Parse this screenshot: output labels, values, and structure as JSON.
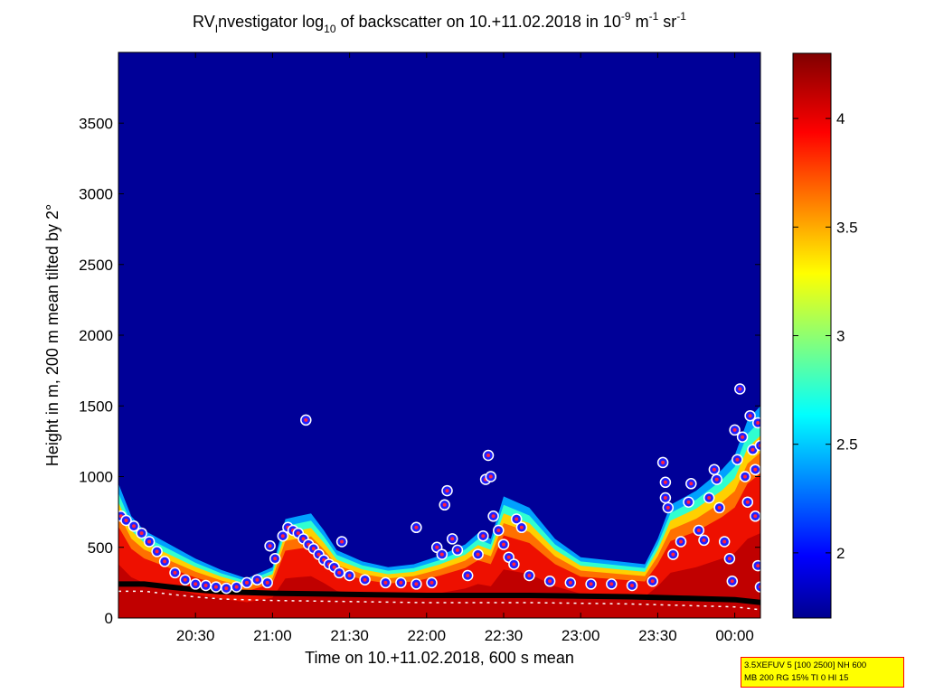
{
  "chart_data": {
    "type": "heatmap",
    "title": {
      "prefix": "RV",
      "prefix_sub": "I",
      "text1": "nvestigator log",
      "sub": "10",
      "text2": " of backscatter on 10.+11.02.2018 in 10",
      "sup1": "-9",
      "text3": " m",
      "sup2": "-1",
      "text4": " sr",
      "sup3": "-1"
    },
    "xlabel": "Time on 10.+11.02.2018, 600 s mean",
    "ylabel": "Height in m, 200 m mean tilted by 2°",
    "x_ticks": [
      {
        "minutes": 30,
        "label": "20:30"
      },
      {
        "minutes": 60,
        "label": "21:00"
      },
      {
        "minutes": 90,
        "label": "21:30"
      },
      {
        "minutes": 120,
        "label": "22:00"
      },
      {
        "minutes": 150,
        "label": "22:30"
      },
      {
        "minutes": 180,
        "label": "23:00"
      },
      {
        "minutes": 210,
        "label": "23:30"
      },
      {
        "minutes": 240,
        "label": "00:00"
      }
    ],
    "xlim_minutes_after_20_00": [
      0,
      250
    ],
    "y_ticks": [
      0,
      500,
      1000,
      1500,
      2000,
      2500,
      3000,
      3500
    ],
    "ylim": [
      0,
      4000
    ],
    "colorbar": {
      "ticks": [
        {
          "value": 2,
          "label": "2"
        },
        {
          "value": 2.5,
          "label": "2.5"
        },
        {
          "value": 3,
          "label": "3"
        },
        {
          "value": 3.5,
          "label": "3.5"
        },
        {
          "value": 4,
          "label": "4"
        }
      ],
      "range": [
        1.7,
        4.3
      ],
      "colormap": "jet"
    },
    "aerosol_top_height_m": [
      [
        0,
        950
      ],
      [
        5,
        720
      ],
      [
        10,
        620
      ],
      [
        20,
        520
      ],
      [
        30,
        420
      ],
      [
        40,
        340
      ],
      [
        50,
        280
      ],
      [
        60,
        360
      ],
      [
        65,
        700
      ],
      [
        70,
        720
      ],
      [
        75,
        740
      ],
      [
        80,
        620
      ],
      [
        85,
        480
      ],
      [
        95,
        400
      ],
      [
        105,
        360
      ],
      [
        115,
        380
      ],
      [
        125,
        440
      ],
      [
        135,
        520
      ],
      [
        140,
        600
      ],
      [
        145,
        560
      ],
      [
        150,
        860
      ],
      [
        160,
        780
      ],
      [
        170,
        560
      ],
      [
        180,
        430
      ],
      [
        195,
        400
      ],
      [
        205,
        380
      ],
      [
        210,
        560
      ],
      [
        215,
        800
      ],
      [
        225,
        900
      ],
      [
        235,
        1050
      ],
      [
        240,
        1150
      ],
      [
        245,
        1400
      ],
      [
        250,
        1500
      ]
    ],
    "boundary_layer_height_m": [
      [
        0,
        240
      ],
      [
        10,
        240
      ],
      [
        15,
        230
      ],
      [
        20,
        220
      ],
      [
        30,
        200
      ],
      [
        40,
        185
      ],
      [
        50,
        180
      ],
      [
        60,
        175
      ],
      [
        80,
        170
      ],
      [
        100,
        165
      ],
      [
        120,
        160
      ],
      [
        140,
        160
      ],
      [
        160,
        160
      ],
      [
        180,
        155
      ],
      [
        200,
        150
      ],
      [
        220,
        140
      ],
      [
        240,
        130
      ],
      [
        250,
        110
      ]
    ],
    "cloud_layer_heights_m": [
      [
        1,
        720
      ],
      [
        3,
        690
      ],
      [
        6,
        650
      ],
      [
        9,
        600
      ],
      [
        12,
        540
      ],
      [
        15,
        470
      ],
      [
        18,
        400
      ],
      [
        22,
        320
      ],
      [
        26,
        270
      ],
      [
        30,
        240
      ],
      [
        34,
        230
      ],
      [
        38,
        220
      ],
      [
        42,
        210
      ],
      [
        46,
        220
      ],
      [
        50,
        250
      ],
      [
        54,
        270
      ],
      [
        58,
        250
      ],
      [
        59,
        510
      ],
      [
        61,
        420
      ],
      [
        64,
        580
      ],
      [
        66,
        640
      ],
      [
        68,
        620
      ],
      [
        70,
        600
      ],
      [
        72,
        560
      ],
      [
        73,
        1400
      ],
      [
        74,
        520
      ],
      [
        76,
        490
      ],
      [
        78,
        450
      ],
      [
        80,
        410
      ],
      [
        82,
        380
      ],
      [
        84,
        360
      ],
      [
        86,
        320
      ],
      [
        87,
        540
      ],
      [
        90,
        300
      ],
      [
        96,
        270
      ],
      [
        104,
        250
      ],
      [
        110,
        250
      ],
      [
        116,
        240
      ],
      [
        122,
        250
      ],
      [
        116,
        640
      ],
      [
        124,
        500
      ],
      [
        126,
        450
      ],
      [
        127,
        800
      ],
      [
        128,
        900
      ],
      [
        130,
        560
      ],
      [
        132,
        480
      ],
      [
        136,
        300
      ],
      [
        140,
        450
      ],
      [
        142,
        580
      ],
      [
        143,
        980
      ],
      [
        144,
        1150
      ],
      [
        145,
        1000
      ],
      [
        146,
        720
      ],
      [
        148,
        620
      ],
      [
        150,
        520
      ],
      [
        152,
        430
      ],
      [
        154,
        380
      ],
      [
        155,
        700
      ],
      [
        157,
        640
      ],
      [
        160,
        300
      ],
      [
        168,
        260
      ],
      [
        176,
        250
      ],
      [
        184,
        240
      ],
      [
        192,
        240
      ],
      [
        200,
        230
      ],
      [
        208,
        260
      ],
      [
        212,
        1100
      ],
      [
        213,
        960
      ],
      [
        213,
        850
      ],
      [
        214,
        780
      ],
      [
        216,
        450
      ],
      [
        219,
        540
      ],
      [
        222,
        820
      ],
      [
        223,
        950
      ],
      [
        226,
        620
      ],
      [
        228,
        550
      ],
      [
        230,
        850
      ],
      [
        232,
        1050
      ],
      [
        233,
        980
      ],
      [
        234,
        780
      ],
      [
        236,
        540
      ],
      [
        238,
        420
      ],
      [
        239,
        260
      ],
      [
        240,
        1330
      ],
      [
        241,
        1120
      ],
      [
        242,
        1620
      ],
      [
        243,
        1280
      ],
      [
        244,
        1000
      ],
      [
        245,
        820
      ],
      [
        246,
        1430
      ],
      [
        247,
        1190
      ],
      [
        248,
        1050
      ],
      [
        248,
        720
      ],
      [
        249,
        1380
      ],
      [
        250,
        1220
      ],
      [
        249,
        370
      ],
      [
        250,
        220
      ]
    ]
  },
  "annotation": {
    "line1": "3.5XEFUV 5 [100 2500] NH 600",
    "line2": "MB 200 RG 15% TI 0 HI 15",
    "bg_color": "#ffff00",
    "border_color": "#ff0000"
  }
}
